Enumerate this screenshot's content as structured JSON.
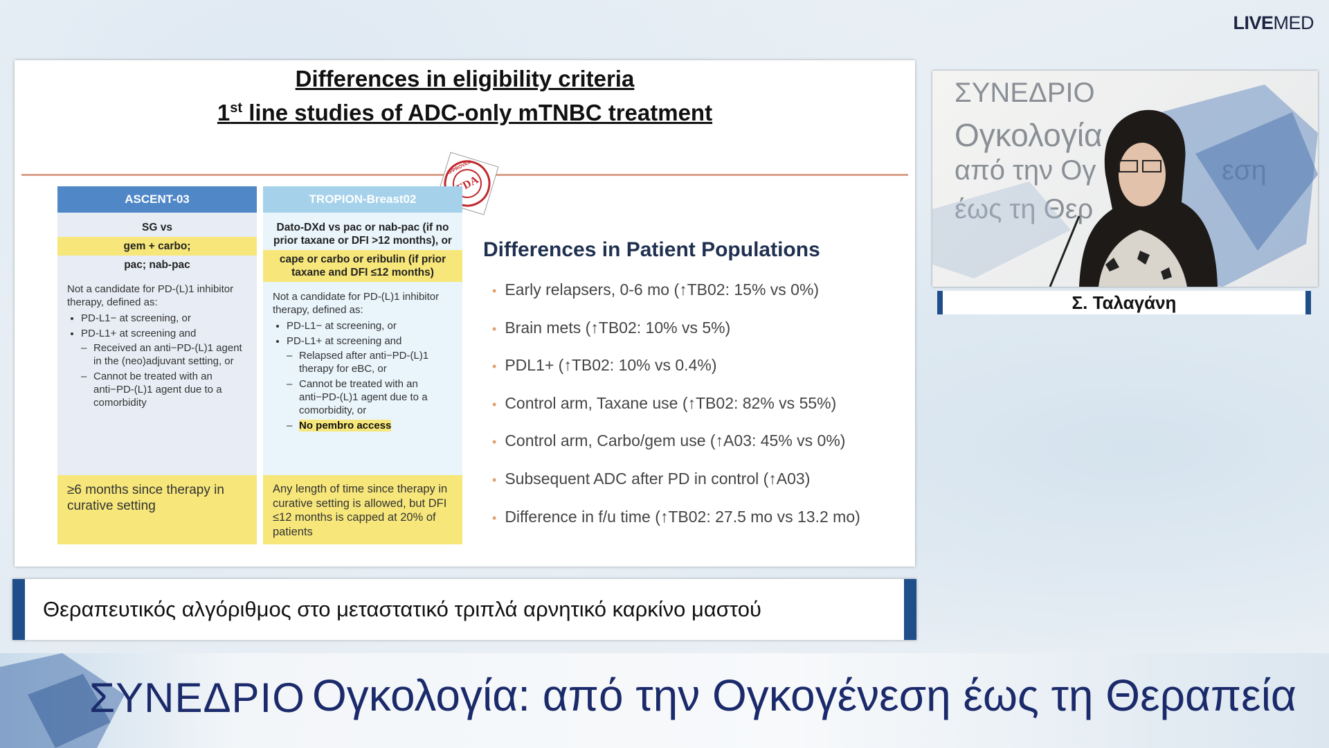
{
  "logo": {
    "bold": "LIVE",
    "light": "MED"
  },
  "slide": {
    "title": {
      "line1": "Differences in eligibility criteria",
      "line2_num": "1",
      "line2_sup": "st",
      "line2_rest": " line studies of ADC-only mTNBC treatment"
    },
    "stamp": {
      "center": "FDA",
      "ring": "APPROVED"
    },
    "columns": [
      {
        "header": "ASCENT-03",
        "treatment": [
          {
            "text": "SG vs",
            "highlight": false
          },
          {
            "text": "gem + carbo;",
            "highlight": true
          },
          {
            "text": "pac; nab-pac",
            "highlight": false
          }
        ],
        "criteria": {
          "intro": "Not a candidate for PD-(L)1 inhibitor therapy, defined as:",
          "bullets": [
            {
              "text": "PD-L1− at screening, or",
              "sub": []
            },
            {
              "text": "PD-L1+ at screening and",
              "sub": [
                {
                  "text": "Received an anti−PD-(L)1 agent in the (neo)adjuvant setting, or",
                  "highlight": false
                },
                {
                  "text": "Cannot be treated with an anti−PD-(L)1 agent due to a comorbidity",
                  "highlight": false
                }
              ]
            }
          ]
        },
        "footer": "≥6 months since therapy in curative setting"
      },
      {
        "header": "TROPION-Breast02",
        "treatment": [
          {
            "text": "Dato-DXd vs pac or nab-pac (if no prior taxane or DFI >12 months), or",
            "highlight": false
          },
          {
            "text": "cape or carbo or eribulin (if prior taxane and DFI ≤12 months)",
            "highlight": true
          }
        ],
        "criteria": {
          "intro": "Not a candidate for PD-(L)1 inhibitor therapy, defined as:",
          "bullets": [
            {
              "text": "PD-L1− at screening, or",
              "sub": []
            },
            {
              "text": "PD-L1+ at screening and",
              "sub": [
                {
                  "text": "Relapsed after anti−PD-(L)1 therapy for eBC, or",
                  "highlight": false
                },
                {
                  "text": "Cannot be treated with an anti−PD-(L)1 agent due to a comorbidity, or",
                  "highlight": false
                },
                {
                  "text": "No pembro access",
                  "highlight": true
                }
              ]
            }
          ]
        },
        "footer": "Any length of time since therapy in curative setting is allowed, but DFI ≤12 months is capped at 20% of patients"
      }
    ],
    "right": {
      "heading": "Differences in Patient Populations",
      "bullets": [
        "Early relapsers, 0-6 mo (↑TB02: 15% vs 0%)",
        "Brain mets (↑TB02: 10% vs 5%)",
        "PDL1+ (↑TB02: 10% vs 0.4%)",
        "Control arm, Taxane use (↑TB02: 82% vs 55%)",
        "Control arm, Carbo/gem use (↑A03: 45% vs 0%)",
        "Subsequent ADC after PD in control (↑A03)",
        "Difference in f/u time (↑TB02: 27.5 mo vs 13.2 mo)"
      ]
    }
  },
  "speaker": {
    "name": "Σ. Ταλαγάνη",
    "backdrop": [
      "ΣΥΝΕΔΡΙΟ",
      "Ογκολογία",
      "από την Ογ",
      "εση",
      "έως τη Θερ"
    ]
  },
  "caption": "Θεραπευτικός αλγόριθμος στο μεταστατικό τριπλά αρνητικό καρκίνο μαστού",
  "banner": {
    "left": "ΣΥΝΕΔΡΙΟ",
    "right": "Ογκολογία: από την Ογκογένεση έως τη Θεραπεία"
  }
}
